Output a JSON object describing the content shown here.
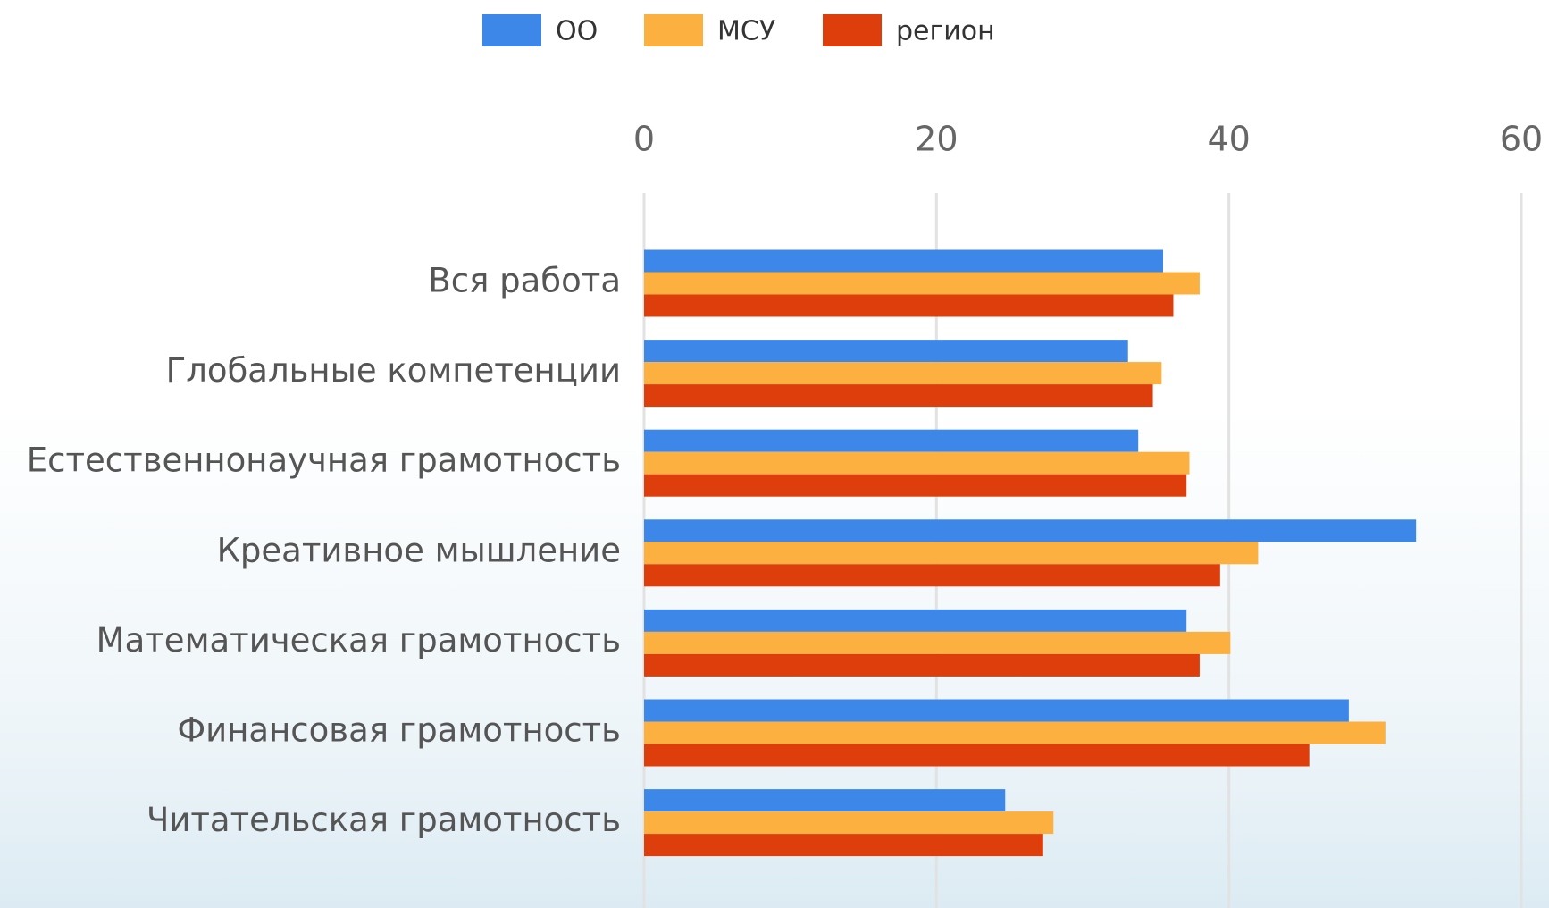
{
  "chart_data": {
    "type": "bar",
    "orientation": "horizontal",
    "categories": [
      "Вся работа",
      "Глобальные компетенции",
      "Естественнонаучная грамотность",
      "Креативное мышление",
      "Математическая грамотность",
      "Финансовая грамотность",
      "Читательская грамотность"
    ],
    "series": [
      {
        "name": "ОО",
        "color": "#3d87e8",
        "values": [
          35.5,
          33.1,
          33.8,
          52.8,
          37.1,
          48.2,
          24.7
        ]
      },
      {
        "name": "МСУ",
        "color": "#fbb040",
        "values": [
          38.0,
          35.4,
          37.3,
          42.0,
          40.1,
          50.7,
          28.0
        ]
      },
      {
        "name": "регион",
        "color": "#dd3e0b",
        "values": [
          36.2,
          34.8,
          37.1,
          39.4,
          38.0,
          45.5,
          27.3
        ]
      }
    ],
    "xlim": [
      0,
      60
    ],
    "xticks": [
      0,
      20,
      40,
      60
    ],
    "grid": true,
    "legend": "top"
  }
}
